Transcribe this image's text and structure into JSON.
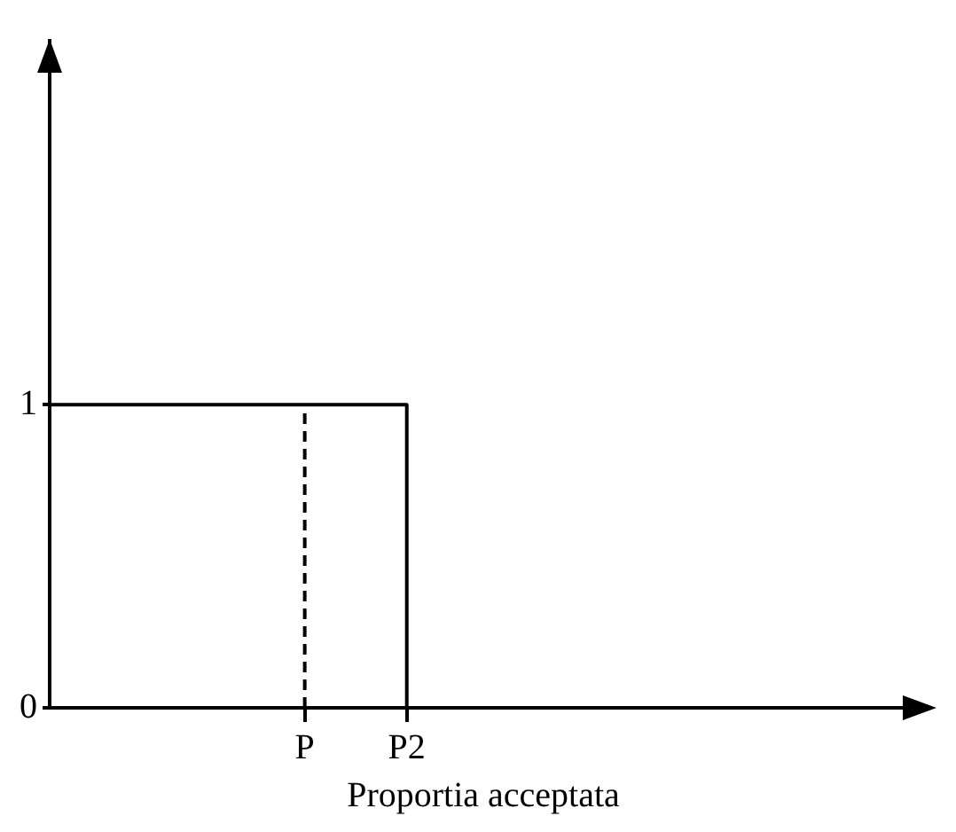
{
  "chart_data": {
    "type": "line",
    "xlabel": "Proportia acceptata",
    "categories": [
      null,
      null,
      null,
      null,
      null,
      "P",
      null,
      "P2",
      null,
      null,
      null,
      null,
      null,
      null,
      null,
      null,
      null,
      null
    ],
    "ylim": [
      0,
      2.2
    ],
    "yticks": [
      0,
      1
    ],
    "series": [
      {
        "type": "step",
        "color": "#000000",
        "values": [
          1,
          1,
          1,
          1,
          1,
          1,
          1,
          0,
          null,
          null,
          null,
          null,
          null,
          null,
          null,
          null,
          null,
          null
        ],
        "line_style": "solid"
      },
      {
        "type": "line",
        "color": "#000000",
        "x": [
          "P",
          "P"
        ],
        "values": [
          0,
          1
        ],
        "line_style": "dashed"
      }
    ],
    "grid": false,
    "legend": false,
    "marker": "none"
  }
}
